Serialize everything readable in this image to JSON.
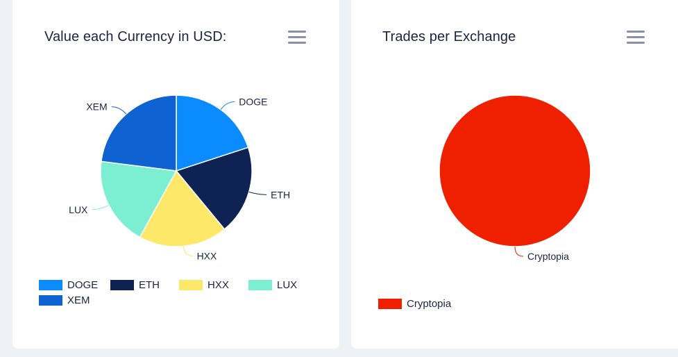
{
  "colors": {
    "background": "#eef1f5",
    "card": "#ffffff",
    "title_text": "#1c2340",
    "menu_icon": "#8a91a7"
  },
  "cards": [
    {
      "title": "Value each Currency in USD:",
      "menu_icon": "hamburger-menu-icon"
    },
    {
      "title": "Trades per Exchange",
      "menu_icon": "hamburger-menu-icon"
    }
  ],
  "chart_data": [
    {
      "type": "pie",
      "title": "Value each Currency in USD:",
      "categories": [
        "DOGE",
        "ETH",
        "HXX",
        "LUX",
        "XEM"
      ],
      "values": [
        20,
        19,
        19,
        19,
        23
      ],
      "colors": [
        "#0a8cff",
        "#0e2354",
        "#fee86a",
        "#7cefd3",
        "#0f62d1"
      ],
      "legend": "bottom",
      "grid": false
    },
    {
      "type": "pie",
      "title": "Trades per Exchange",
      "categories": [
        "Cryptopia"
      ],
      "values": [
        100
      ],
      "colors": [
        "#ee2000"
      ],
      "legend": "bottom-left",
      "grid": false
    }
  ]
}
